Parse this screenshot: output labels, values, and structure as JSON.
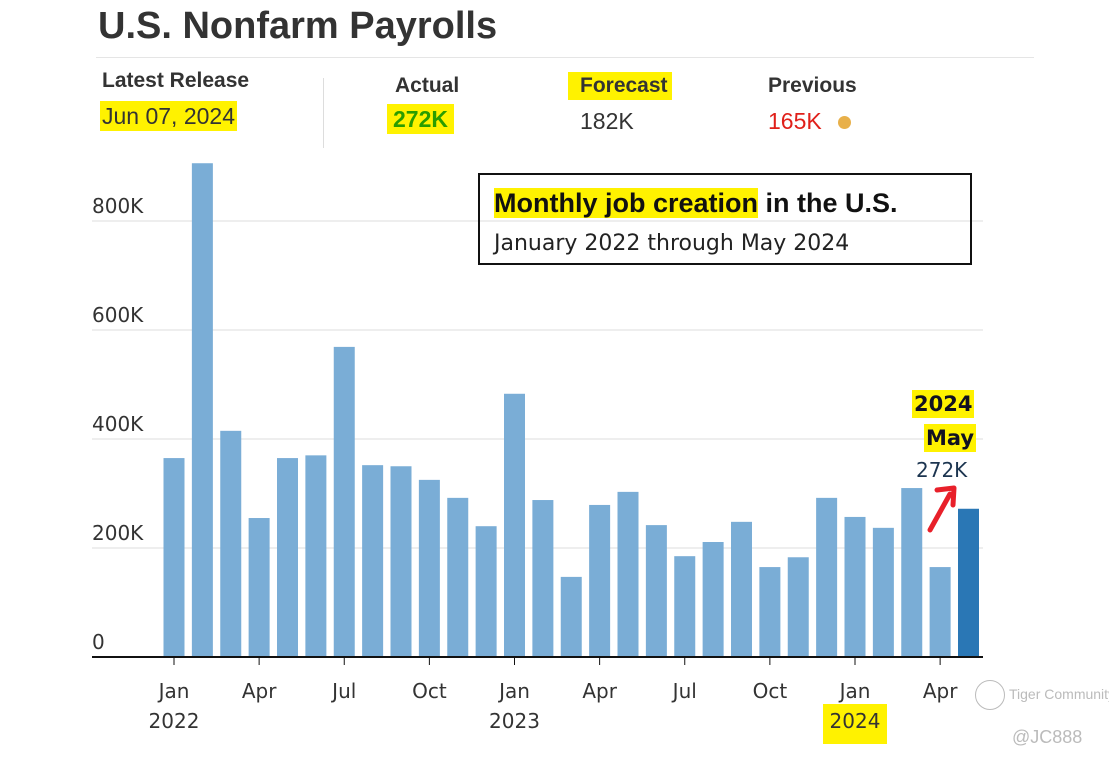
{
  "header": {
    "title": "U.S. Nonfarm Payrolls",
    "latest_release_label": "Latest Release",
    "latest_release_date": "Jun 07, 2024",
    "actual_label": "Actual",
    "actual_value": "272K",
    "forecast_label": "Forecast",
    "forecast_value": "182K",
    "previous_label": "Previous",
    "previous_value": "165K"
  },
  "colors": {
    "bar": "#7aadd6",
    "bar_highlight": "#2a77b5",
    "actual": "#2a9d00",
    "previous": "#e0201a",
    "highlight": "#fff200"
  },
  "chart_data": {
    "type": "bar",
    "title": "Monthly job creation in the U.S.",
    "title_highlight": "Monthly job creation",
    "title_rest": " in the U.S.",
    "subtitle": "January 2022 through May 2024",
    "ylim": [
      0,
      906
    ],
    "yticks": [
      {
        "v": 0,
        "label": "0"
      },
      {
        "v": 200,
        "label": "200K"
      },
      {
        "v": 400,
        "label": "400K"
      },
      {
        "v": 600,
        "label": "600K"
      },
      {
        "v": 800,
        "label": "800K"
      }
    ],
    "xticks": [
      {
        "i": 0,
        "label": "Jan",
        "year": "2022"
      },
      {
        "i": 3,
        "label": "Apr"
      },
      {
        "i": 6,
        "label": "Jul"
      },
      {
        "i": 9,
        "label": "Oct"
      },
      {
        "i": 12,
        "label": "Jan",
        "year": "2023"
      },
      {
        "i": 15,
        "label": "Apr"
      },
      {
        "i": 18,
        "label": "Jul"
      },
      {
        "i": 21,
        "label": "Oct"
      },
      {
        "i": 24,
        "label": "Jan",
        "year": "2024"
      },
      {
        "i": 27,
        "label": "Apr"
      }
    ],
    "categories": [
      "2022-01",
      "2022-02",
      "2022-03",
      "2022-04",
      "2022-05",
      "2022-06",
      "2022-07",
      "2022-08",
      "2022-09",
      "2022-10",
      "2022-11",
      "2022-12",
      "2023-01",
      "2023-02",
      "2023-03",
      "2023-04",
      "2023-05",
      "2023-06",
      "2023-07",
      "2023-08",
      "2023-09",
      "2023-10",
      "2023-11",
      "2023-12",
      "2024-01",
      "2024-02",
      "2024-03",
      "2024-04",
      "2024-05"
    ],
    "values": [
      365,
      906,
      415,
      255,
      365,
      370,
      569,
      352,
      350,
      325,
      292,
      240,
      483,
      288,
      147,
      279,
      303,
      242,
      185,
      211,
      248,
      165,
      183,
      292,
      257,
      237,
      310,
      165,
      272
    ],
    "unit": "K",
    "annotation": {
      "year": "2024",
      "month": "May",
      "value": "272K"
    }
  },
  "watermark": {
    "text": "Tiger Community",
    "handle": "@JC888"
  }
}
